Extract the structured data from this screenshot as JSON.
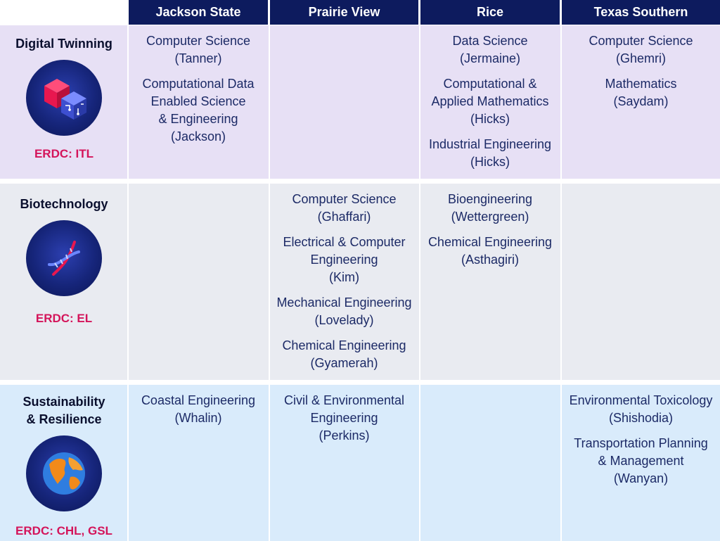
{
  "columns": [
    "Jackson State",
    "Prairie View",
    "Rice",
    "Texas Southern"
  ],
  "colors": {
    "header_bg": "#0d1b5e",
    "row1_bg": "#e7e0f5",
    "row2_bg": "#e9ebf1",
    "row3_bg": "#d9ebfb",
    "erdc_text": "#d4145a"
  },
  "rows": [
    {
      "theme": [
        "Digital Twinning"
      ],
      "icon": "digital-cube-icon",
      "erdc": "ERDC: ITL",
      "cells": [
        [
          {
            "lines": [
              "Computer Science",
              "(Tanner)"
            ]
          },
          {
            "lines": [
              "Computational Data",
              "Enabled Science",
              "& Engineering",
              "(Jackson)"
            ]
          }
        ],
        [],
        [
          {
            "lines": [
              "Data Science",
              "(Jermaine)"
            ]
          },
          {
            "lines": [
              "Computational &",
              "Applied Mathematics",
              "(Hicks)"
            ]
          },
          {
            "lines": [
              "Industrial Engineering",
              "(Hicks)"
            ]
          }
        ],
        [
          {
            "lines": [
              "Computer Science",
              "(Ghemri)"
            ]
          },
          {
            "lines": [
              "Mathematics",
              "(Saydam)"
            ]
          }
        ]
      ]
    },
    {
      "theme": [
        "Biotechnology"
      ],
      "icon": "dna-helix-icon",
      "erdc": "ERDC: EL",
      "cells": [
        [],
        [
          {
            "lines": [
              "Computer Science",
              "(Ghaffari)"
            ]
          },
          {
            "lines": [
              "Electrical & Computer",
              "Engineering",
              "(Kim)"
            ]
          },
          {
            "lines": [
              "Mechanical Engineering",
              "(Lovelady)"
            ]
          },
          {
            "lines": [
              "Chemical Engineering",
              "(Gyamerah)"
            ]
          }
        ],
        [
          {
            "lines": [
              "Bioengineering",
              "(Wettergreen)"
            ]
          },
          {
            "lines": [
              "Chemical Engineering",
              "(Asthagiri)"
            ]
          }
        ],
        []
      ]
    },
    {
      "theme": [
        "Sustainability",
        "& Resilience"
      ],
      "icon": "globe-icon",
      "erdc": "ERDC: CHL, GSL",
      "cells": [
        [
          {
            "lines": [
              "Coastal Engineering",
              "(Whalin)"
            ]
          }
        ],
        [
          {
            "lines": [
              "Civil & Environmental",
              "Engineering",
              "(Perkins)"
            ]
          }
        ],
        [],
        [
          {
            "lines": [
              "Environmental Toxicology",
              "(Shishodia)"
            ]
          },
          {
            "lines": [
              "Transportation Planning",
              "& Management",
              "(Wanyan)"
            ]
          }
        ]
      ]
    }
  ]
}
